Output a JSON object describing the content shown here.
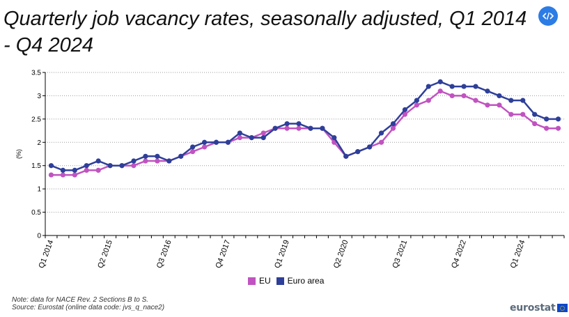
{
  "title": "Quarterly job vacancy rates, seasonally adjusted, Q1 2014 - Q4 2024",
  "note_line1": "Note: data for NACE Rev. 2 Sections B to S.",
  "note_line2": "Source: Eurostat (online data code: jvs_q_nace2)",
  "logo_text": "eurostat",
  "embed_icon": "code-embed-icon",
  "chart_data": {
    "type": "line",
    "ylabel": "(%)",
    "ylim": [
      0,
      3.5
    ],
    "yticks": [
      "0",
      "0.5",
      "1",
      "1.5",
      "2",
      "2.5",
      "3",
      "3.5"
    ],
    "grid": "horizontal dotted",
    "legend": "bottom-center",
    "x": [
      "Q1 2014",
      "Q2 2014",
      "Q3 2014",
      "Q4 2014",
      "Q1 2015",
      "Q2 2015",
      "Q3 2015",
      "Q4 2015",
      "Q1 2016",
      "Q2 2016",
      "Q3 2016",
      "Q4 2016",
      "Q1 2017",
      "Q2 2017",
      "Q3 2017",
      "Q4 2017",
      "Q1 2018",
      "Q2 2018",
      "Q3 2018",
      "Q4 2018",
      "Q1 2019",
      "Q2 2019",
      "Q3 2019",
      "Q4 2019",
      "Q1 2020",
      "Q2 2020",
      "Q3 2020",
      "Q4 2020",
      "Q1 2021",
      "Q2 2021",
      "Q3 2021",
      "Q4 2021",
      "Q1 2022",
      "Q2 2022",
      "Q3 2022",
      "Q4 2022",
      "Q1 2023",
      "Q2 2023",
      "Q3 2023",
      "Q4 2023",
      "Q1 2024",
      "Q2 2024",
      "Q3 2024",
      "Q4 2024"
    ],
    "xtick_labels": [
      "Q1 2014",
      "Q2 2015",
      "Q3 2016",
      "Q4 2017",
      "Q1 2019",
      "Q2 2020",
      "Q3 2021",
      "Q4 2022",
      "Q1 2024"
    ],
    "series": [
      {
        "name": "EU",
        "color": "#c153c1",
        "values": [
          1.3,
          1.3,
          1.3,
          1.4,
          1.4,
          1.5,
          1.5,
          1.5,
          1.6,
          1.6,
          1.6,
          1.7,
          1.8,
          1.9,
          2.0,
          2.0,
          2.1,
          2.1,
          2.2,
          2.3,
          2.3,
          2.3,
          2.3,
          2.3,
          2.0,
          1.7,
          1.8,
          1.9,
          2.0,
          2.3,
          2.6,
          2.8,
          2.9,
          3.1,
          3.0,
          3.0,
          2.9,
          2.8,
          2.8,
          2.6,
          2.6,
          2.4,
          2.3,
          2.3
        ]
      },
      {
        "name": "Euro area",
        "color": "#2e3f99",
        "values": [
          1.5,
          1.4,
          1.4,
          1.5,
          1.6,
          1.5,
          1.5,
          1.6,
          1.7,
          1.7,
          1.6,
          1.7,
          1.9,
          2.0,
          2.0,
          2.0,
          2.2,
          2.1,
          2.1,
          2.3,
          2.4,
          2.4,
          2.3,
          2.3,
          2.1,
          1.7,
          1.8,
          1.9,
          2.2,
          2.4,
          2.7,
          2.9,
          3.2,
          3.3,
          3.2,
          3.2,
          3.2,
          3.1,
          3.0,
          2.9,
          2.9,
          2.6,
          2.5,
          2.5
        ]
      }
    ]
  }
}
